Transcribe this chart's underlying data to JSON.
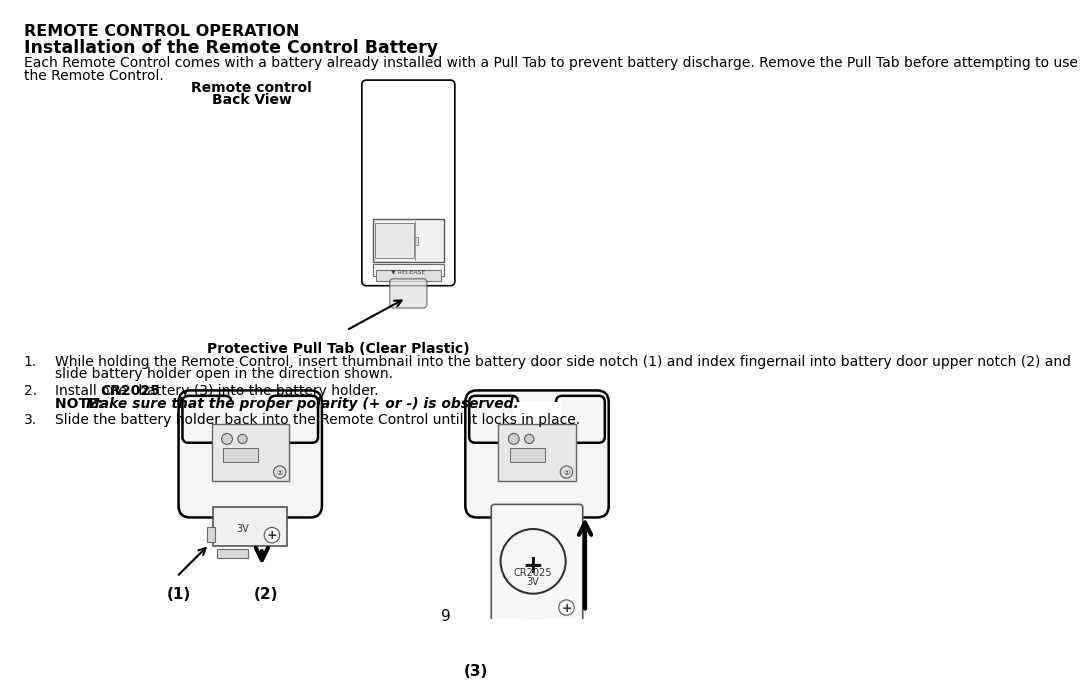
{
  "title": "REMOTE CONTROL OPERATION",
  "subtitle": "Installation of the Remote Control Battery",
  "intro_line1": "Each Remote Control comes with a battery already installed with a Pull Tab to prevent battery discharge. Remove the Pull Tab before attempting to use",
  "intro_line2": "the Remote Control.",
  "remote_label1": "Remote control",
  "remote_label2": "Back View",
  "pull_tab_label": "Protective Pull Tab (Clear Plastic)",
  "step1_num": "1.",
  "step1_line1": "While holding the Remote Control, insert thumbnail into the battery door side notch (1) and index fingernail into battery door upper notch (2) and",
  "step1_line2": "slide battery holder open in the direction shown.",
  "step2_num": "2.",
  "step2_a": "Install one ",
  "step2_b": "CR2025",
  "step2_c": " battery (3) into the battery holder.",
  "note_prefix": "NOTE: ",
  "note_italic": "Make sure that the proper polarity (+ or -) is observed.",
  "step3_num": "3.",
  "step3": "Slide the battery holder back into the Remote Control until it locks in place.",
  "label1": "(1)",
  "label2": "(2)",
  "label3": "(3)",
  "page_number": "9",
  "bg_color": "#ffffff",
  "text_color": "#000000"
}
